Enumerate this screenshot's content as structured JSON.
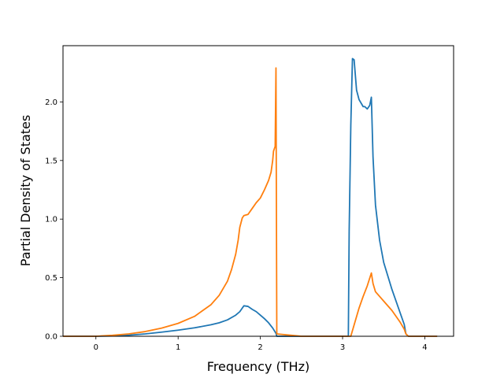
{
  "chart_data": {
    "type": "line",
    "title": "",
    "xlabel": "Frequency (THz)",
    "ylabel": "Partial Density of States",
    "xlim": [
      -0.4,
      4.35
    ],
    "ylim": [
      0.0,
      2.48
    ],
    "xticks": [
      0,
      1,
      2,
      3,
      4
    ],
    "yticks": [
      0.0,
      0.5,
      1.0,
      1.5,
      2.0
    ],
    "xtick_labels": [
      "0",
      "1",
      "2",
      "3",
      "4"
    ],
    "ytick_labels": [
      "0.0",
      "0.5",
      "1.0",
      "1.5",
      "2.0"
    ],
    "grid": false,
    "legend": "none",
    "series": [
      {
        "color": "#1f77b4",
        "x": [
          -0.4,
          0.0,
          0.2,
          0.4,
          0.6,
          0.8,
          1.0,
          1.2,
          1.4,
          1.5,
          1.6,
          1.7,
          1.75,
          1.78,
          1.8,
          1.85,
          1.9,
          1.95,
          2.0,
          2.05,
          2.1,
          2.15,
          2.19,
          2.2,
          2.5,
          2.8,
          3.07,
          3.08,
          3.1,
          3.12,
          3.14,
          3.17,
          3.2,
          3.25,
          3.27,
          3.3,
          3.33,
          3.35,
          3.37,
          3.4,
          3.45,
          3.5,
          3.6,
          3.7,
          3.75,
          3.77,
          3.8,
          4.0,
          4.15
        ],
        "y": [
          0.0,
          0.0,
          0.003,
          0.009,
          0.02,
          0.035,
          0.052,
          0.072,
          0.098,
          0.115,
          0.14,
          0.18,
          0.21,
          0.24,
          0.26,
          0.255,
          0.23,
          0.21,
          0.18,
          0.15,
          0.115,
          0.07,
          0.025,
          0.0,
          0.0,
          0.0,
          0.0,
          0.9,
          1.8,
          2.37,
          2.36,
          2.1,
          2.02,
          1.96,
          1.96,
          1.94,
          1.97,
          2.04,
          1.53,
          1.12,
          0.82,
          0.63,
          0.4,
          0.2,
          0.1,
          0.02,
          0.0,
          0.0,
          0.0
        ]
      },
      {
        "color": "#ff7f0e",
        "x": [
          -0.4,
          0.0,
          0.2,
          0.4,
          0.6,
          0.8,
          1.0,
          1.2,
          1.4,
          1.5,
          1.6,
          1.65,
          1.7,
          1.73,
          1.75,
          1.78,
          1.8,
          1.85,
          1.9,
          1.95,
          2.0,
          2.05,
          2.1,
          2.13,
          2.15,
          2.16,
          2.18,
          2.19,
          2.2,
          2.5,
          2.8,
          3.05,
          3.1,
          3.15,
          3.2,
          3.25,
          3.3,
          3.35,
          3.37,
          3.4,
          3.5,
          3.6,
          3.7,
          3.75,
          3.77,
          3.8,
          4.0,
          4.15
        ],
        "y": [
          0.0,
          0.0,
          0.008,
          0.02,
          0.04,
          0.07,
          0.11,
          0.17,
          0.27,
          0.35,
          0.47,
          0.57,
          0.7,
          0.82,
          0.93,
          1.01,
          1.03,
          1.04,
          1.09,
          1.14,
          1.18,
          1.25,
          1.33,
          1.4,
          1.5,
          1.58,
          1.62,
          2.29,
          0.02,
          0.0,
          0.0,
          0.0,
          0.0,
          0.12,
          0.24,
          0.34,
          0.43,
          0.54,
          0.45,
          0.38,
          0.3,
          0.22,
          0.12,
          0.06,
          0.02,
          0.0,
          0.0,
          0.0
        ]
      }
    ]
  }
}
